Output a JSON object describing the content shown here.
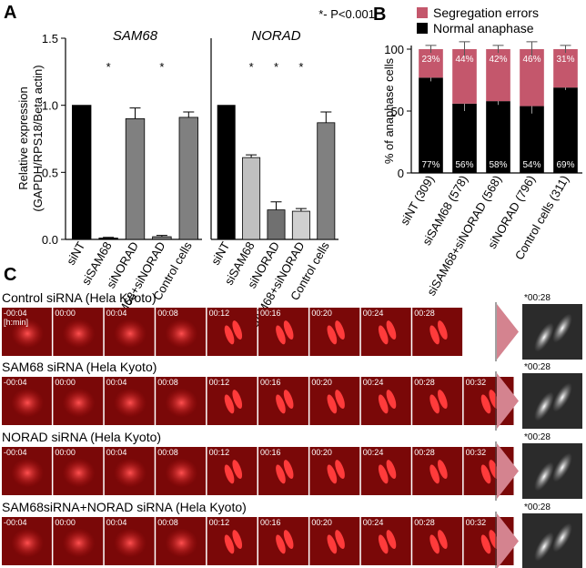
{
  "panel_labels": [
    "A",
    "B",
    "C"
  ],
  "chart_data": [
    {
      "type": "bar",
      "title": "SAM68",
      "annotation": "*- P<0.001",
      "ylabel": [
        "Relative expression",
        "(GAPDH/RPS18/Beta actin)"
      ],
      "categories": [
        "siNT",
        "siSAM68",
        "siNORAD",
        "siSAM68+siNORAD",
        "Control cells"
      ],
      "values": [
        1.0,
        0.01,
        0.9,
        0.02,
        0.91
      ],
      "errors": [
        0,
        0.005,
        0.08,
        0.01,
        0.04
      ],
      "colors": [
        "#000000",
        "#000000",
        "#808080",
        "#808080",
        "#808080"
      ],
      "stars": [
        null,
        "*",
        null,
        "*",
        null
      ],
      "ylim": [
        0,
        1.5
      ],
      "yticks": [
        {
          "value": 0,
          "label": "0.0"
        },
        {
          "value": 0.5,
          "label": "0.5"
        },
        {
          "value": 1,
          "label": "1.0"
        },
        {
          "value": 1.5,
          "label": "1.5"
        }
      ]
    },
    {
      "type": "bar",
      "title": "NORAD",
      "categories": [
        "siNT",
        "siSAM68",
        "siNORAD",
        "siSAM68+siNORAD",
        "Control cells"
      ],
      "values": [
        1.0,
        0.61,
        0.22,
        0.21,
        0.87
      ],
      "errors": [
        0,
        0.02,
        0.06,
        0.02,
        0.08
      ],
      "colors": [
        "#000000",
        "#c0c0c0",
        "#707070",
        "#d0d0d0",
        "#808080"
      ],
      "stars": [
        null,
        "*",
        "*",
        "*",
        null
      ],
      "ylim": [
        0,
        1.5
      ]
    },
    {
      "type": "stacked_bar",
      "ylabel": "% of anaphase cells",
      "categories": [
        "siNT (309)",
        "siSAM68 (578)",
        "siSAM68+siNORAD (568)",
        "siNORAD (796)",
        "Control cells (311)"
      ],
      "series": [
        {
          "name": "Normal anaphase",
          "color": "#000000",
          "values": [
            77,
            56,
            58,
            54,
            69
          ],
          "value_labels": [
            "77%",
            "56%",
            "58%",
            "54%",
            "69%"
          ],
          "errors": [
            3,
            6,
            3,
            6,
            2
          ]
        },
        {
          "name": "Segregation errors",
          "color": "#c4576c",
          "values": [
            23,
            44,
            42,
            46,
            31
          ],
          "value_labels": [
            "23%",
            "44%",
            "42%",
            "46%",
            "31%"
          ],
          "errors": [
            3,
            6,
            3,
            6,
            3
          ]
        }
      ],
      "ylim": [
        0,
        100
      ],
      "yticks": [
        0,
        50,
        100
      ]
    }
  ],
  "panel_c": {
    "unit_label": "[h:min]",
    "rows": [
      {
        "title": "Control siRNA (Hela Kyoto)",
        "times": [
          "-00:04",
          "00:00",
          "00:04",
          "00:08",
          "00:12",
          "00:16",
          "00:20",
          "00:24",
          "00:28"
        ],
        "zoom_time": "*00:28"
      },
      {
        "title": "SAM68  siRNA (Hela Kyoto)",
        "times": [
          "-00:04",
          "00:00",
          "00:04",
          "00:08",
          "00:12",
          "00:16",
          "00:20",
          "00:24",
          "00:28",
          "00:32"
        ],
        "zoom_time": "*00:28"
      },
      {
        "title": "NORAD siRNA (Hela Kyoto)",
        "times": [
          "-00:04",
          "00:00",
          "00:04",
          "00:08",
          "00:12",
          "00:16",
          "00:20",
          "00:24",
          "00:28",
          "00:32"
        ],
        "zoom_time": "*00:28"
      },
      {
        "title": "SAM68siRNA+NORAD siRNA (Hela Kyoto)",
        "times": [
          "-00:04",
          "00:00",
          "00:04",
          "00:08",
          "00:12",
          "00:16",
          "00:20",
          "00:24",
          "00:28",
          "00:32"
        ],
        "zoom_time": "*00:28"
      }
    ]
  }
}
